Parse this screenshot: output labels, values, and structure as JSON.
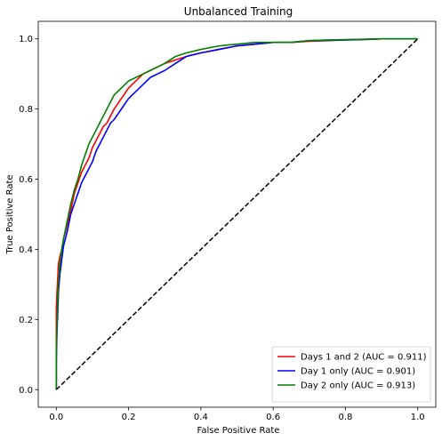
{
  "chart_data": {
    "type": "line",
    "title": "Unbalanced Training",
    "xlabel": "False Positive Rate",
    "ylabel": "True Positive Rate",
    "xlim": [
      -0.05,
      1.05
    ],
    "ylim": [
      -0.05,
      1.05
    ],
    "xticks": [
      "0.0",
      "0.2",
      "0.4",
      "0.6",
      "0.8",
      "1.0"
    ],
    "yticks": [
      "0.0",
      "0.2",
      "0.4",
      "0.6",
      "0.8",
      "1.0"
    ],
    "grid": false,
    "legend_position": "bottom-right",
    "series": [
      {
        "name": "Days 1 and 2 (AUC = 0.911)",
        "color": "#ff0000",
        "style": "solid",
        "x": [
          0,
          0,
          0.002,
          0.004,
          0.006,
          0.01,
          0.015,
          0.02,
          0.03,
          0.04,
          0.05,
          0.06,
          0.07,
          0.08,
          0.09,
          0.1,
          0.11,
          0.12,
          0.13,
          0.14,
          0.15,
          0.16,
          0.18,
          0.2,
          0.22,
          0.24,
          0.26,
          0.28,
          0.3,
          0.33,
          0.36,
          0.4,
          0.45,
          0.5,
          0.55,
          0.6,
          0.65,
          0.7,
          0.75,
          0.8,
          0.85,
          0.9
        ],
        "y": [
          0,
          0.23,
          0.28,
          0.32,
          0.36,
          0.38,
          0.4,
          0.43,
          0.47,
          0.51,
          0.56,
          0.59,
          0.62,
          0.64,
          0.66,
          0.69,
          0.71,
          0.73,
          0.75,
          0.76,
          0.78,
          0.8,
          0.83,
          0.86,
          0.88,
          0.9,
          0.91,
          0.92,
          0.93,
          0.94,
          0.95,
          0.96,
          0.97,
          0.98,
          0.985,
          0.99,
          0.99,
          0.993,
          0.995,
          0.997,
          0.998,
          1.0
        ]
      },
      {
        "name": "Day 1 only (AUC = 0.901)",
        "color": "#0000ff",
        "style": "solid",
        "x": [
          0,
          0,
          0.002,
          0.004,
          0.006,
          0.01,
          0.015,
          0.02,
          0.03,
          0.04,
          0.05,
          0.06,
          0.07,
          0.08,
          0.09,
          0.1,
          0.11,
          0.12,
          0.13,
          0.14,
          0.15,
          0.16,
          0.18,
          0.2,
          0.22,
          0.24,
          0.26,
          0.28,
          0.3,
          0.33,
          0.36,
          0.4,
          0.45,
          0.5,
          0.55,
          0.6,
          0.65,
          0.7,
          0.75,
          0.8,
          0.9,
          1.0
        ],
        "y": [
          0,
          0.08,
          0.17,
          0.22,
          0.28,
          0.33,
          0.37,
          0.41,
          0.45,
          0.5,
          0.53,
          0.56,
          0.59,
          0.61,
          0.63,
          0.65,
          0.68,
          0.7,
          0.72,
          0.74,
          0.76,
          0.77,
          0.8,
          0.83,
          0.85,
          0.87,
          0.89,
          0.9,
          0.91,
          0.93,
          0.95,
          0.96,
          0.97,
          0.98,
          0.985,
          0.99,
          0.99,
          0.995,
          0.996,
          0.997,
          1.0,
          1.0
        ]
      },
      {
        "name": "Day 2 only (AUC = 0.913)",
        "color": "#008000",
        "style": "solid",
        "x": [
          0,
          0,
          0.002,
          0.004,
          0.006,
          0.01,
          0.015,
          0.02,
          0.03,
          0.04,
          0.05,
          0.06,
          0.07,
          0.08,
          0.09,
          0.1,
          0.11,
          0.12,
          0.13,
          0.14,
          0.15,
          0.16,
          0.18,
          0.2,
          0.22,
          0.24,
          0.26,
          0.28,
          0.3,
          0.33,
          0.36,
          0.4,
          0.45,
          0.5,
          0.55,
          0.6,
          0.65,
          0.7,
          0.75,
          0.8,
          0.9,
          1.0
        ],
        "y": [
          0,
          0.1,
          0.2,
          0.26,
          0.31,
          0.36,
          0.4,
          0.43,
          0.48,
          0.53,
          0.57,
          0.6,
          0.64,
          0.67,
          0.7,
          0.72,
          0.74,
          0.76,
          0.78,
          0.8,
          0.82,
          0.84,
          0.86,
          0.88,
          0.89,
          0.9,
          0.91,
          0.92,
          0.93,
          0.95,
          0.96,
          0.97,
          0.98,
          0.985,
          0.99,
          0.99,
          0.99,
          0.995,
          0.997,
          0.998,
          1.0,
          1.0
        ]
      },
      {
        "name": "",
        "color": "#000000",
        "style": "dashed",
        "x": [
          0,
          1
        ],
        "y": [
          0,
          1
        ]
      }
    ]
  }
}
